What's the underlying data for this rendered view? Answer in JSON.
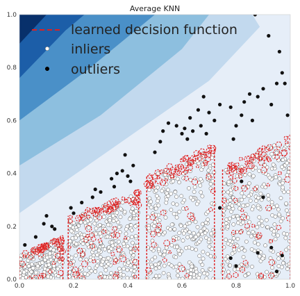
{
  "chart_data": {
    "type": "scatter",
    "title": "Average KNN",
    "xlabel": "",
    "ylabel": "",
    "xlim": [
      0.0,
      1.0
    ],
    "ylim": [
      0.0,
      1.0
    ],
    "xticks": [
      "0.0",
      "0.2",
      "0.4",
      "0.6",
      "0.8",
      "1.0"
    ],
    "yticks": [
      "0.0",
      "0.2",
      "0.4",
      "0.6",
      "0.8",
      "1.0"
    ],
    "grid": false,
    "legend_position": "top-left",
    "legend": [
      {
        "label": "learned decision function",
        "marker": "dashed-line",
        "color": "#e02020"
      },
      {
        "label": "inliers",
        "marker": "dot",
        "color": "#ffffff"
      },
      {
        "label": "outliers",
        "marker": "dot",
        "color": "#000000"
      }
    ],
    "colors": {
      "contour_levels": [
        "#08306b",
        "#1c5ea8",
        "#4a90c8",
        "#8dbfdf",
        "#c2d9ee",
        "#e6eef8"
      ],
      "decision_boundary": "#e02020",
      "inlier_fill": "#ffffff",
      "inlier_edge": "#555555",
      "outlier": "#111111"
    },
    "inlier_clusters": [
      {
        "x_range": [
          0.0,
          0.16
        ],
        "y_top_start": 0.09,
        "y_top_end": 0.16
      },
      {
        "x_range": [
          0.18,
          0.44
        ],
        "y_top_start": 0.24,
        "y_top_end": 0.33
      },
      {
        "x_range": [
          0.47,
          0.72
        ],
        "y_top_start": 0.39,
        "y_top_end": 0.51
      },
      {
        "x_range": [
          0.75,
          1.0
        ],
        "y_top_start": 0.42,
        "y_top_end": 0.55
      }
    ],
    "outliers": [
      [
        0.02,
        0.13
      ],
      [
        0.09,
        0.21
      ],
      [
        0.1,
        0.24
      ],
      [
        0.13,
        0.19
      ],
      [
        0.12,
        0.2
      ],
      [
        0.06,
        0.16
      ],
      [
        0.19,
        0.27
      ],
      [
        0.2,
        0.25
      ],
      [
        0.23,
        0.29
      ],
      [
        0.27,
        0.31
      ],
      [
        0.3,
        0.33
      ],
      [
        0.28,
        0.34
      ],
      [
        0.34,
        0.38
      ],
      [
        0.36,
        0.4
      ],
      [
        0.38,
        0.41
      ],
      [
        0.4,
        0.39
      ],
      [
        0.42,
        0.43
      ],
      [
        0.39,
        0.47
      ],
      [
        0.41,
        0.37
      ],
      [
        0.35,
        0.35
      ],
      [
        0.5,
        0.48
      ],
      [
        0.52,
        0.52
      ],
      [
        0.53,
        0.56
      ],
      [
        0.55,
        0.59
      ],
      [
        0.58,
        0.58
      ],
      [
        0.61,
        0.57
      ],
      [
        0.6,
        0.55
      ],
      [
        0.63,
        0.61
      ],
      [
        0.66,
        0.64
      ],
      [
        0.68,
        0.69
      ],
      [
        0.7,
        0.63
      ],
      [
        0.72,
        0.6
      ],
      [
        0.69,
        0.55
      ],
      [
        0.64,
        0.56
      ],
      [
        0.67,
        0.58
      ],
      [
        0.62,
        0.53
      ],
      [
        0.78,
        0.65
      ],
      [
        0.8,
        0.58
      ],
      [
        0.82,
        0.62
      ],
      [
        0.85,
        0.7
      ],
      [
        0.83,
        0.67
      ],
      [
        0.88,
        0.69
      ],
      [
        0.9,
        0.72
      ],
      [
        0.93,
        0.66
      ],
      [
        0.95,
        0.74
      ],
      [
        0.97,
        0.78
      ],
      [
        0.96,
        0.86
      ],
      [
        0.92,
        0.92
      ],
      [
        0.87,
        1.0
      ],
      [
        0.98,
        0.74
      ],
      [
        0.74,
        0.66
      ],
      [
        0.79,
        0.53
      ],
      [
        0.86,
        0.6
      ],
      [
        0.99,
        0.62
      ],
      [
        0.78,
        0.08
      ],
      [
        0.8,
        0.05
      ],
      [
        0.93,
        0.12
      ],
      [
        0.95,
        0.03
      ],
      [
        0.97,
        0.09
      ],
      [
        0.88,
        0.1
      ],
      [
        0.74,
        0.27
      ],
      [
        0.82,
        0.37
      ],
      [
        0.9,
        0.31
      ]
    ]
  }
}
